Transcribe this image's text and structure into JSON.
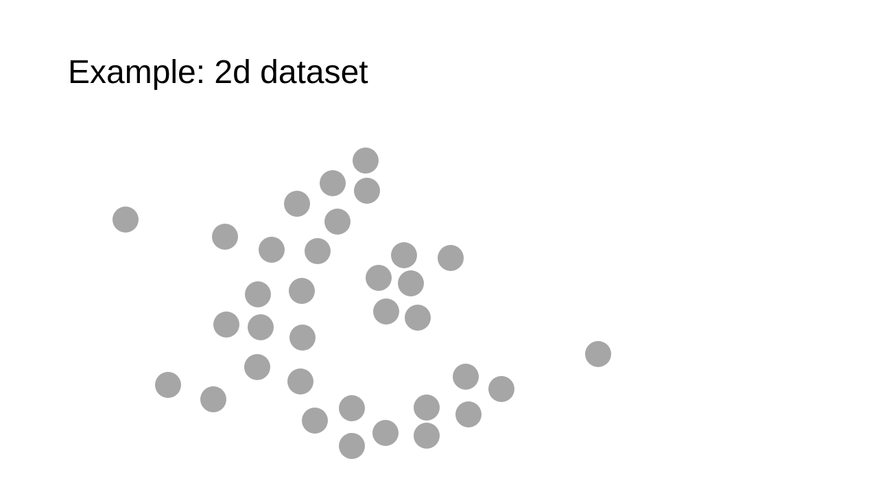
{
  "slide": {
    "title": "Example: 2d dataset"
  },
  "chart_data": {
    "type": "scatter",
    "title": "Example: 2d dataset",
    "xlabel": "",
    "ylabel": "",
    "grid": false,
    "marker_color": "#a6a6a6",
    "x": [
      183,
      328,
      396,
      433,
      485,
      533,
      535,
      492,
      463,
      376,
      440,
      330,
      380,
      441,
      375,
      438,
      245,
      311,
      459,
      513,
      513,
      562,
      589,
      552,
      599,
      563,
      609,
      657,
      622,
      622,
      679,
      683,
      731,
      872
    ],
    "y": [
      320,
      345,
      364,
      297,
      267,
      234,
      278,
      323,
      366,
      429,
      424,
      473,
      477,
      492,
      535,
      556,
      561,
      582,
      613,
      595,
      650,
      631,
      372,
      405,
      413,
      454,
      463,
      376,
      594,
      635,
      549,
      604,
      567,
      516
    ]
  }
}
